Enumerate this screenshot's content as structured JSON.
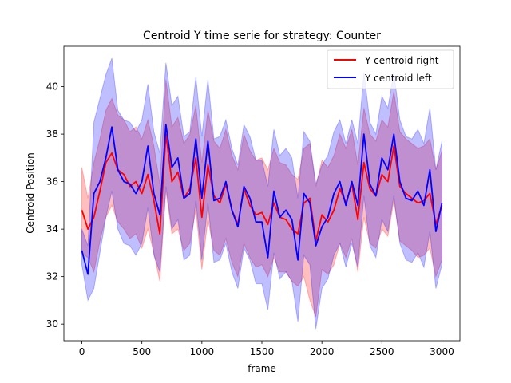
{
  "chart_data": {
    "type": "line",
    "title": "Centroid Y time serie for strategy: Counter",
    "xlabel": "frame",
    "ylabel": "Centroid Position",
    "xlim": [
      -150,
      3150
    ],
    "ylim": [
      29.3,
      41.7
    ],
    "xticks": [
      0,
      500,
      1000,
      1500,
      2000,
      2500,
      3000
    ],
    "yticks": [
      30,
      32,
      34,
      36,
      38,
      40
    ],
    "grid": false,
    "legend_position": "top-right",
    "x": [
      0,
      50,
      100,
      150,
      200,
      250,
      300,
      350,
      400,
      450,
      500,
      550,
      600,
      650,
      700,
      750,
      800,
      850,
      900,
      950,
      1000,
      1050,
      1100,
      1150,
      1200,
      1250,
      1300,
      1350,
      1400,
      1450,
      1500,
      1550,
      1600,
      1650,
      1700,
      1750,
      1800,
      1850,
      1900,
      1950,
      2000,
      2050,
      2100,
      2150,
      2200,
      2250,
      2300,
      2350,
      2400,
      2450,
      2500,
      2550,
      2600,
      2650,
      2700,
      2750,
      2800,
      2850,
      2900,
      2950,
      3000
    ],
    "series": [
      {
        "name": "Y centroid right",
        "color": "#ff0000",
        "band_color": "#ff0000",
        "values": [
          34.8,
          34.0,
          34.5,
          35.6,
          36.8,
          37.2,
          36.5,
          36.3,
          35.8,
          36.0,
          35.5,
          36.3,
          35.2,
          33.8,
          38.0,
          36.0,
          36.4,
          35.3,
          35.7,
          37.0,
          34.5,
          36.7,
          35.4,
          35.1,
          35.9,
          34.8,
          34.2,
          35.7,
          35.0,
          34.6,
          34.7,
          34.2,
          35.1,
          34.5,
          34.4,
          34.0,
          33.8,
          35.1,
          35.3,
          33.5,
          34.6,
          34.3,
          34.8,
          35.7,
          35.1,
          35.9,
          34.4,
          36.8,
          35.7,
          35.4,
          36.3,
          36.0,
          37.5,
          35.8,
          35.5,
          35.3,
          35.1,
          35.2,
          35.5,
          34.2,
          35.0
        ],
        "band_low": [
          33.0,
          32.8,
          32.2,
          33.5,
          34.5,
          35.0,
          34.3,
          34.0,
          33.6,
          33.8,
          33.2,
          34.0,
          33.0,
          31.8,
          35.6,
          33.8,
          34.0,
          33.1,
          33.4,
          34.8,
          32.3,
          34.4,
          33.1,
          32.9,
          33.6,
          32.6,
          32.0,
          33.4,
          32.8,
          32.4,
          32.5,
          32.0,
          32.8,
          32.2,
          32.2,
          31.8,
          31.6,
          32.0,
          31.0,
          30.3,
          32.3,
          32.1,
          32.5,
          33.4,
          32.8,
          33.6,
          32.2,
          34.5,
          33.4,
          33.2,
          34.0,
          33.7,
          35.2,
          33.5,
          33.3,
          33.1,
          32.8,
          32.9,
          33.2,
          32.0,
          32.7
        ],
        "band_high": [
          36.6,
          35.3,
          36.8,
          37.8,
          39.0,
          39.5,
          38.8,
          38.6,
          38.1,
          38.3,
          37.8,
          38.6,
          37.5,
          35.9,
          40.3,
          38.3,
          38.7,
          37.6,
          38.0,
          39.2,
          36.8,
          39.0,
          37.7,
          37.4,
          38.2,
          37.1,
          36.5,
          38.0,
          37.3,
          36.9,
          37.0,
          36.5,
          37.4,
          36.8,
          36.7,
          36.3,
          36.1,
          37.4,
          37.6,
          35.8,
          36.9,
          36.6,
          37.1,
          38.0,
          37.4,
          38.2,
          36.7,
          39.1,
          38.0,
          37.7,
          38.6,
          38.3,
          39.8,
          38.1,
          37.8,
          37.6,
          37.4,
          37.5,
          37.8,
          36.5,
          37.3
        ]
      },
      {
        "name": "Y centroid left",
        "color": "#0000ff",
        "band_color": "#0000ff",
        "values": [
          33.1,
          32.1,
          35.5,
          36.0,
          37.0,
          38.3,
          36.5,
          36.0,
          35.9,
          35.5,
          36.0,
          37.5,
          35.5,
          34.6,
          38.4,
          36.6,
          37.0,
          35.3,
          35.5,
          37.8,
          35.3,
          37.7,
          35.2,
          35.3,
          36.0,
          34.8,
          34.1,
          35.8,
          35.3,
          34.3,
          34.3,
          32.8,
          35.6,
          34.5,
          34.8,
          34.4,
          32.7,
          35.5,
          35.1,
          33.3,
          34.1,
          34.5,
          35.5,
          36.0,
          35.0,
          36.0,
          35.0,
          38.0,
          35.9,
          35.4,
          37.0,
          36.5,
          38.0,
          36.0,
          35.3,
          35.2,
          35.6,
          35.0,
          36.5,
          33.9,
          35.1
        ],
        "band_low": [
          32.5,
          31.0,
          31.5,
          33.0,
          34.5,
          35.6,
          34.0,
          33.4,
          33.3,
          32.9,
          33.4,
          34.9,
          32.9,
          32.2,
          35.8,
          34.0,
          34.4,
          32.7,
          32.9,
          35.2,
          32.7,
          35.1,
          32.6,
          32.7,
          33.4,
          32.2,
          31.5,
          33.2,
          32.7,
          31.7,
          31.7,
          30.6,
          33.0,
          31.9,
          32.2,
          31.8,
          30.1,
          32.9,
          32.5,
          29.8,
          31.5,
          31.9,
          32.9,
          33.4,
          32.4,
          33.4,
          32.4,
          35.4,
          33.3,
          32.8,
          34.4,
          33.9,
          35.4,
          33.4,
          32.7,
          32.6,
          33.0,
          32.4,
          33.9,
          31.5,
          32.5
        ],
        "band_high": [
          34.0,
          33.3,
          38.5,
          39.5,
          40.5,
          41.2,
          39.0,
          38.6,
          38.5,
          38.1,
          38.6,
          40.1,
          38.1,
          37.2,
          41.0,
          39.2,
          39.6,
          37.9,
          38.1,
          40.4,
          37.9,
          40.3,
          37.8,
          37.9,
          38.6,
          37.4,
          36.7,
          38.4,
          37.9,
          36.9,
          36.9,
          35.8,
          38.2,
          37.1,
          37.4,
          37.0,
          35.3,
          38.1,
          37.7,
          35.9,
          36.7,
          37.1,
          38.1,
          38.6,
          37.6,
          38.6,
          37.6,
          40.6,
          38.5,
          38.0,
          39.6,
          39.1,
          40.6,
          38.6,
          37.9,
          37.8,
          38.2,
          37.6,
          39.1,
          36.5,
          37.7
        ]
      }
    ]
  }
}
